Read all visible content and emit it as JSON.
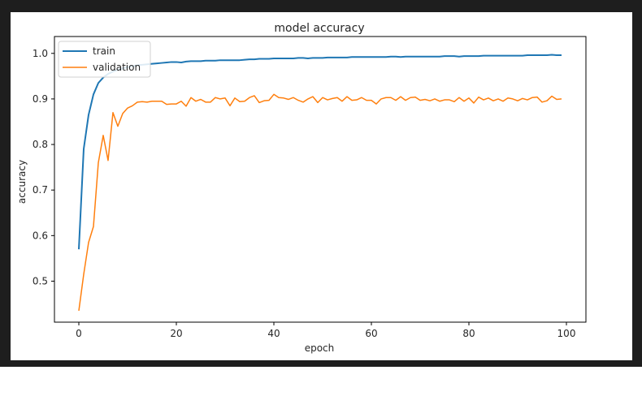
{
  "chart_data": {
    "type": "line",
    "title": "model accuracy",
    "xlabel": "epoch",
    "ylabel": "accuracy",
    "xlim": [
      -5,
      104
    ],
    "ylim": [
      0.41,
      1.037
    ],
    "xticks": [
      0,
      20,
      40,
      60,
      80,
      100
    ],
    "yticks": [
      0.5,
      0.6,
      0.7,
      0.8,
      0.9,
      1.0
    ],
    "xtick_labels": [
      "0",
      "20",
      "40",
      "60",
      "80",
      "100"
    ],
    "ytick_labels": [
      "0.5",
      "0.6",
      "0.7",
      "0.8",
      "0.9",
      "1.0"
    ],
    "legend_position": "top-left",
    "grid": false,
    "series": [
      {
        "name": "train",
        "color": "#1f77b4",
        "x": [
          0,
          1,
          2,
          3,
          4,
          5,
          6,
          7,
          8,
          9,
          10,
          11,
          12,
          13,
          14,
          15,
          16,
          17,
          18,
          19,
          20,
          21,
          22,
          23,
          24,
          25,
          26,
          27,
          28,
          29,
          30,
          31,
          32,
          33,
          34,
          35,
          36,
          37,
          38,
          39,
          40,
          41,
          42,
          43,
          44,
          45,
          46,
          47,
          48,
          49,
          50,
          51,
          52,
          53,
          54,
          55,
          56,
          57,
          58,
          59,
          60,
          61,
          62,
          63,
          64,
          65,
          66,
          67,
          68,
          69,
          70,
          71,
          72,
          73,
          74,
          75,
          76,
          77,
          78,
          79,
          80,
          81,
          82,
          83,
          84,
          85,
          86,
          87,
          88,
          89,
          90,
          91,
          92,
          93,
          94,
          95,
          96,
          97,
          98,
          99
        ],
        "y": [
          0.57,
          0.79,
          0.865,
          0.91,
          0.935,
          0.947,
          0.955,
          0.96,
          0.964,
          0.967,
          0.97,
          0.972,
          0.974,
          0.975,
          0.976,
          0.977,
          0.978,
          0.979,
          0.98,
          0.981,
          0.981,
          0.98,
          0.982,
          0.983,
          0.983,
          0.983,
          0.984,
          0.984,
          0.984,
          0.985,
          0.985,
          0.985,
          0.985,
          0.985,
          0.986,
          0.987,
          0.987,
          0.988,
          0.988,
          0.988,
          0.989,
          0.989,
          0.989,
          0.989,
          0.989,
          0.99,
          0.99,
          0.989,
          0.99,
          0.99,
          0.99,
          0.991,
          0.991,
          0.991,
          0.991,
          0.991,
          0.992,
          0.992,
          0.992,
          0.992,
          0.992,
          0.992,
          0.992,
          0.992,
          0.993,
          0.993,
          0.992,
          0.993,
          0.993,
          0.993,
          0.993,
          0.993,
          0.993,
          0.993,
          0.993,
          0.994,
          0.994,
          0.994,
          0.993,
          0.994,
          0.994,
          0.994,
          0.994,
          0.995,
          0.995,
          0.995,
          0.995,
          0.995,
          0.995,
          0.995,
          0.995,
          0.995,
          0.996,
          0.996,
          0.996,
          0.996,
          0.996,
          0.997,
          0.996,
          0.996
        ]
      },
      {
        "name": "validation",
        "color": "#ff7f0e",
        "x": [
          0,
          1,
          2,
          3,
          4,
          5,
          6,
          7,
          8,
          9,
          10,
          11,
          12,
          13,
          14,
          15,
          16,
          17,
          18,
          19,
          20,
          21,
          22,
          23,
          24,
          25,
          26,
          27,
          28,
          29,
          30,
          31,
          32,
          33,
          34,
          35,
          36,
          37,
          38,
          39,
          40,
          41,
          42,
          43,
          44,
          45,
          46,
          47,
          48,
          49,
          50,
          51,
          52,
          53,
          54,
          55,
          56,
          57,
          58,
          59,
          60,
          61,
          62,
          63,
          64,
          65,
          66,
          67,
          68,
          69,
          70,
          71,
          72,
          73,
          74,
          75,
          76,
          77,
          78,
          79,
          80,
          81,
          82,
          83,
          84,
          85,
          86,
          87,
          88,
          89,
          90,
          91,
          92,
          93,
          94,
          95,
          96,
          97,
          98,
          99
        ],
        "y": [
          0.435,
          0.515,
          0.585,
          0.62,
          0.76,
          0.82,
          0.765,
          0.87,
          0.84,
          0.868,
          0.88,
          0.885,
          0.893,
          0.894,
          0.893,
          0.895,
          0.895,
          0.895,
          0.888,
          0.889,
          0.889,
          0.895,
          0.884,
          0.903,
          0.895,
          0.899,
          0.893,
          0.893,
          0.903,
          0.9,
          0.902,
          0.885,
          0.902,
          0.894,
          0.895,
          0.903,
          0.907,
          0.892,
          0.896,
          0.897,
          0.91,
          0.903,
          0.902,
          0.899,
          0.903,
          0.897,
          0.893,
          0.9,
          0.905,
          0.892,
          0.903,
          0.898,
          0.901,
          0.903,
          0.895,
          0.905,
          0.897,
          0.898,
          0.903,
          0.897,
          0.897,
          0.889,
          0.9,
          0.903,
          0.903,
          0.897,
          0.905,
          0.897,
          0.903,
          0.904,
          0.897,
          0.899,
          0.896,
          0.9,
          0.895,
          0.898,
          0.898,
          0.894,
          0.903,
          0.895,
          0.902,
          0.891,
          0.904,
          0.898,
          0.902,
          0.896,
          0.9,
          0.895,
          0.902,
          0.9,
          0.896,
          0.901,
          0.898,
          0.903,
          0.904,
          0.893,
          0.896,
          0.906,
          0.899,
          0.9
        ]
      }
    ]
  }
}
